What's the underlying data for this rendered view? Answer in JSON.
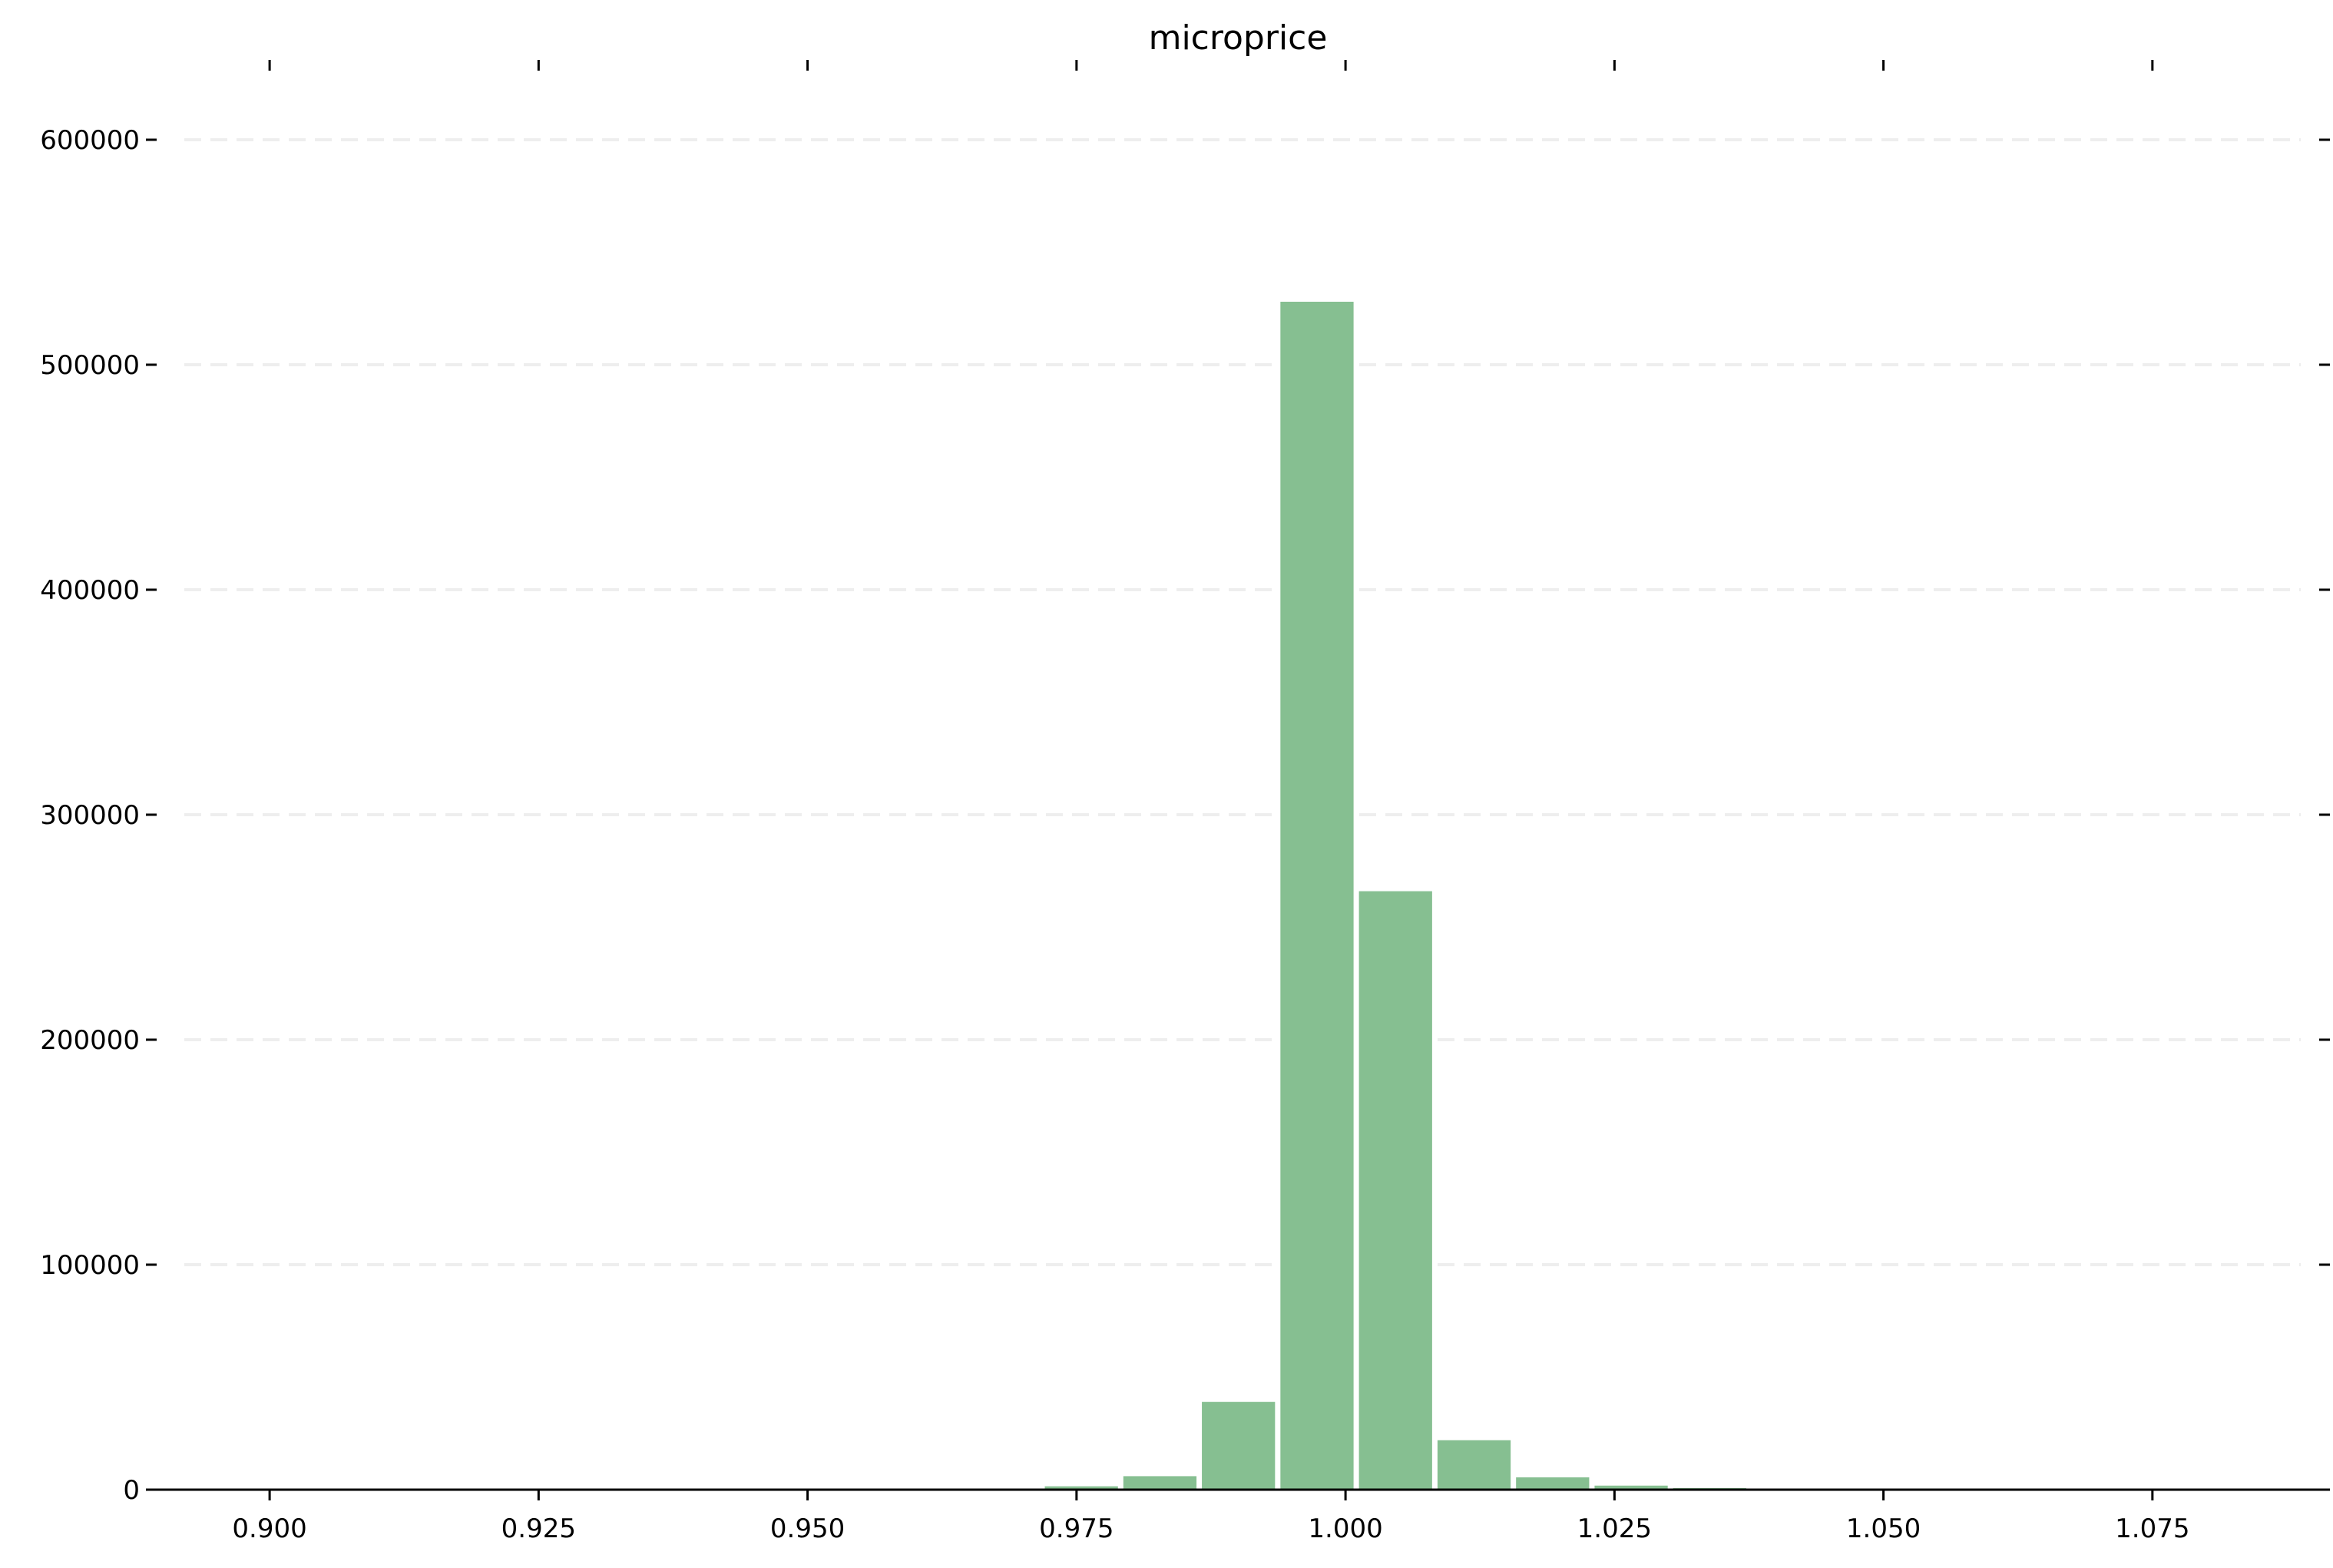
{
  "chart_data": {
    "type": "bar",
    "title": "microprice",
    "xlabel": "",
    "ylabel": "",
    "xlim": [
      0.8895,
      1.0905
    ],
    "ylim": [
      0,
      600000
    ],
    "x_ticks": [
      0.9,
      0.925,
      0.95,
      0.975,
      1.0,
      1.025,
      1.05,
      1.075
    ],
    "x_tick_labels": [
      "0.900",
      "0.925",
      "0.950",
      "0.975",
      "1.000",
      "1.025",
      "1.050",
      "1.075"
    ],
    "y_ticks": [
      0,
      100000,
      200000,
      300000,
      400000,
      500000,
      600000
    ],
    "y_tick_labels": [
      "0",
      "100000",
      "200000",
      "300000",
      "400000",
      "500000",
      "600000"
    ],
    "grid": "horizontal dashed",
    "legend": "none",
    "bin_width": 0.0073,
    "bins": [
      {
        "x0": 0.9645,
        "value": 300
      },
      {
        "x0": 0.9718,
        "value": 1500
      },
      {
        "x0": 0.9791,
        "value": 6000
      },
      {
        "x0": 0.9864,
        "value": 39000
      },
      {
        "x0": 0.9937,
        "value": 528000
      },
      {
        "x0": 1.001,
        "value": 266000
      },
      {
        "x0": 1.0083,
        "value": 22000
      },
      {
        "x0": 1.0156,
        "value": 5500
      },
      {
        "x0": 1.0229,
        "value": 1800
      },
      {
        "x0": 1.0302,
        "value": 700
      },
      {
        "x0": 1.0375,
        "value": 300
      }
    ],
    "colors": {
      "bar": "#86bf91",
      "axis": "#000000",
      "grid": "#eeeeee"
    }
  }
}
